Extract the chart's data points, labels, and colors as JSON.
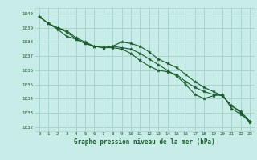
{
  "title": "Graphe pression niveau de la mer (hPa)",
  "bg_color": "#c8ede8",
  "grid_color": "#a8d4cc",
  "line_color": "#1a5c2a",
  "marker_color": "#1a5c2a",
  "x_ticks": [
    0,
    1,
    2,
    3,
    4,
    5,
    6,
    7,
    8,
    9,
    10,
    11,
    12,
    13,
    14,
    15,
    16,
    17,
    18,
    19,
    20,
    21,
    22,
    23
  ],
  "y_ticks": [
    1032,
    1033,
    1034,
    1035,
    1036,
    1037,
    1038,
    1039,
    1040
  ],
  "ylim": [
    1031.7,
    1040.4
  ],
  "xlim": [
    -0.5,
    23.5
  ],
  "series": [
    [
      1039.8,
      1039.3,
      1039.0,
      1038.8,
      1038.3,
      1038.0,
      1037.7,
      1037.6,
      1037.6,
      1037.5,
      1037.2,
      1036.7,
      1036.3,
      1036.0,
      1035.9,
      1035.7,
      1035.2,
      1034.8,
      1034.5,
      1034.3,
      1034.2,
      1033.5,
      1033.1,
      1032.4
    ],
    [
      1039.8,
      1039.3,
      1039.0,
      1038.7,
      1038.2,
      1037.9,
      1037.7,
      1037.6,
      1037.7,
      1038.0,
      1037.9,
      1037.7,
      1037.3,
      1036.8,
      1036.5,
      1036.2,
      1035.7,
      1035.2,
      1034.8,
      1034.5,
      1034.2,
      1033.5,
      1033.0,
      1032.3
    ],
    [
      1039.8,
      1039.3,
      1038.9,
      1038.4,
      1038.2,
      1037.9,
      1037.7,
      1037.7,
      1037.7,
      1037.6,
      1037.5,
      1037.2,
      1036.8,
      1036.4,
      1036.0,
      1035.6,
      1035.0,
      1034.3,
      1034.0,
      1034.2,
      1034.3,
      1033.3,
      1032.9,
      1032.4
    ]
  ]
}
